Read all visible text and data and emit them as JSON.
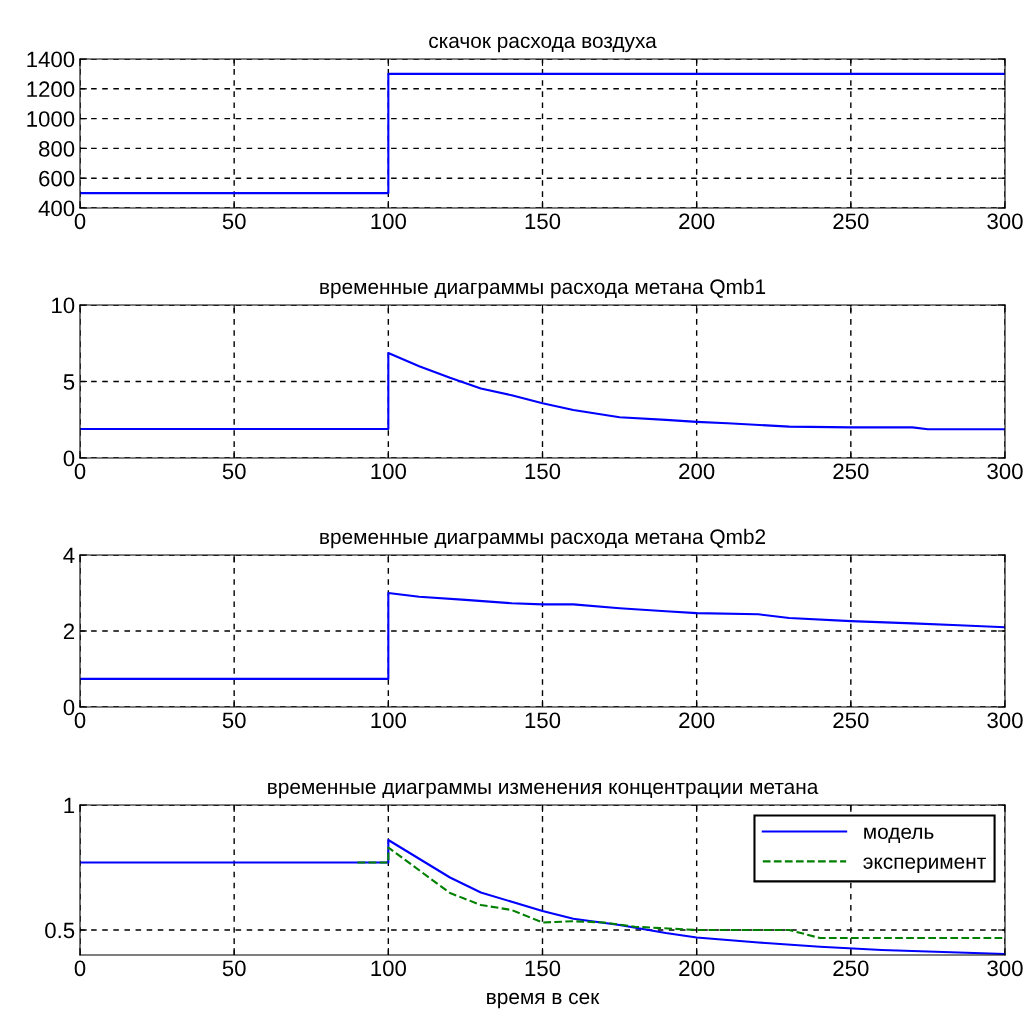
{
  "chart_data": [
    {
      "type": "line",
      "title": "скачок расхода воздуха",
      "x": [
        0,
        100,
        100,
        300
      ],
      "series": [
        {
          "color": "#0000ff",
          "values": [
            500,
            500,
            1300,
            1300
          ]
        }
      ],
      "xlim": [
        0,
        300
      ],
      "xticks": [
        0,
        50,
        100,
        150,
        200,
        250,
        300
      ],
      "ylim": [
        400,
        1400
      ],
      "yticks": [
        400,
        600,
        800,
        1000,
        1200,
        1400
      ],
      "grid": true,
      "line_style": "solid"
    },
    {
      "type": "line",
      "title": "временные диаграммы расхода метана Qmb1",
      "x": [
        0,
        100,
        100,
        110,
        120,
        130,
        140,
        150,
        160,
        175,
        190,
        200,
        210,
        230,
        250,
        270,
        275,
        300
      ],
      "series": [
        {
          "color": "#0000ff",
          "values": [
            1.9,
            1.9,
            6.86,
            6.0,
            5.24,
            4.54,
            4.1,
            3.58,
            3.14,
            2.66,
            2.49,
            2.36,
            2.27,
            2.05,
            2.0,
            2.0,
            1.88,
            1.88
          ]
        }
      ],
      "xlim": [
        0,
        300
      ],
      "xticks": [
        0,
        50,
        100,
        150,
        200,
        250,
        300
      ],
      "ylim": [
        0,
        10
      ],
      "yticks": [
        0,
        5,
        10
      ],
      "grid": true,
      "line_style": "solid"
    },
    {
      "type": "line",
      "title": "временные диаграммы расхода метана Qmb2",
      "x": [
        0,
        100,
        100,
        110,
        125,
        140,
        150,
        160,
        175,
        190,
        200,
        220,
        230,
        250,
        270,
        285,
        300
      ],
      "series": [
        {
          "color": "#0000ff",
          "values": [
            0.74,
            0.74,
            3.0,
            2.9,
            2.82,
            2.73,
            2.7,
            2.7,
            2.6,
            2.52,
            2.47,
            2.44,
            2.34,
            2.26,
            2.2,
            2.15,
            2.1
          ]
        }
      ],
      "xlim": [
        0,
        300
      ],
      "xticks": [
        0,
        50,
        100,
        150,
        200,
        250,
        300
      ],
      "ylim": [
        0,
        4
      ],
      "yticks": [
        0,
        2,
        4
      ],
      "grid": true,
      "line_style": "solid"
    },
    {
      "type": "line",
      "title": "временные диаграммы изменения концентрации метана",
      "xlabel": "время в сек",
      "series": [
        {
          "name": "модель",
          "color": "#0000ff",
          "line_style": "solid",
          "x": [
            0,
            100,
            100,
            120,
            130,
            150,
            160,
            175,
            190,
            200,
            220,
            240,
            260,
            280,
            300
          ],
          "values": [
            0.77,
            0.77,
            0.86,
            0.71,
            0.65,
            0.576,
            0.545,
            0.52,
            0.488,
            0.47,
            0.45,
            0.433,
            0.42,
            0.412,
            0.404
          ]
        },
        {
          "name": "эксперимент",
          "color": "#008000",
          "line_style": "dashed",
          "x": [
            90,
            100,
            100,
            120,
            130,
            140,
            150,
            160,
            170,
            180,
            200,
            230,
            240,
            260,
            300
          ],
          "values": [
            0.77,
            0.77,
            0.83,
            0.648,
            0.6,
            0.58,
            0.53,
            0.535,
            0.53,
            0.513,
            0.5,
            0.5,
            0.468,
            0.468,
            0.468
          ]
        }
      ],
      "xlim": [
        0,
        300
      ],
      "xticks": [
        0,
        50,
        100,
        150,
        200,
        250,
        300
      ],
      "ylim": [
        0.4,
        1
      ],
      "yticks": [
        0.5,
        1
      ],
      "grid": true,
      "legend": "top right"
    }
  ]
}
